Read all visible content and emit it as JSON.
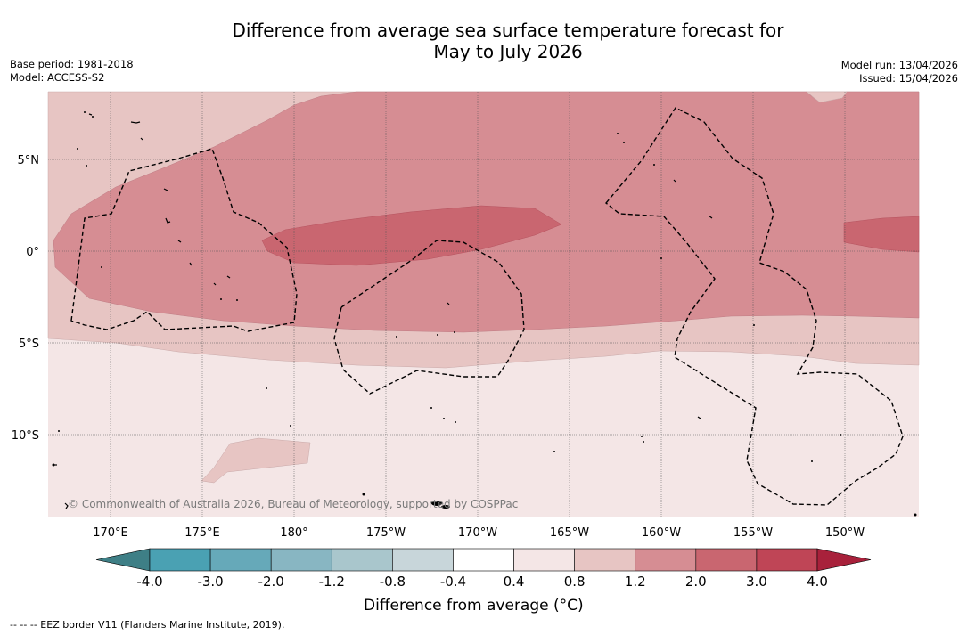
{
  "title": {
    "line1": "Difference from average sea surface temperature forecast for",
    "line2": "May to July 2026"
  },
  "meta_left": {
    "base_period": "Base period: 1981-2018",
    "model": "Model: ACCESS-S2"
  },
  "meta_right": {
    "model_run": "Model run: 13/04/2026",
    "issued": "Issued: 15/04/2026"
  },
  "map": {
    "copyright": "© Commonwealth of Australia 2026, Bureau of Meteorology, supported by COSPPac",
    "lat_labels": [
      "5°N",
      "0°",
      "5°S",
      "10°S"
    ],
    "lon_labels": [
      "170°E",
      "175°E",
      "180°",
      "175°W",
      "170°W",
      "165°W",
      "160°W",
      "155°W",
      "150°W"
    ]
  },
  "colorbar": {
    "label": "Difference from average (°C)",
    "ticks": [
      "-4.0",
      "-3.0",
      "-2.0",
      "-1.2",
      "-0.8",
      "-0.4",
      "0.4",
      "0.8",
      "1.2",
      "2.0",
      "3.0",
      "4.0"
    ],
    "colors": [
      "#3e7f86",
      "#4aa1b3",
      "#66a9b9",
      "#88b6c2",
      "#a9c6cc",
      "#c8d6da",
      "#ffffff",
      "#f4e6e6",
      "#e7c5c3",
      "#d68d93",
      "#c96670",
      "#bf4556",
      "#a8213b"
    ]
  },
  "legend": {
    "eez": "-- -- -- EEZ border V11 (Flanders Marine Institute, 2019)."
  }
}
